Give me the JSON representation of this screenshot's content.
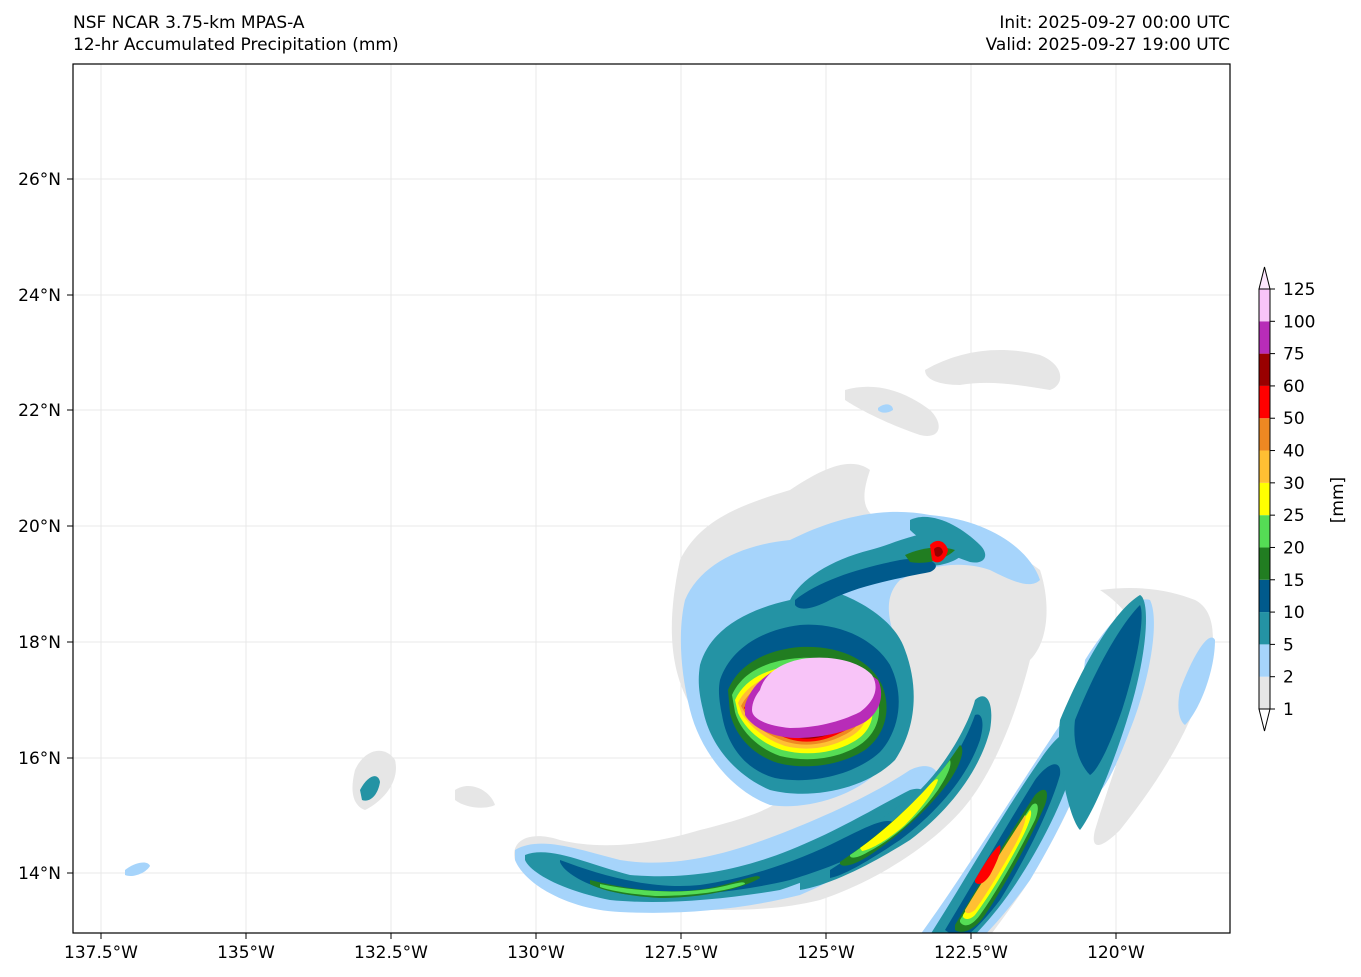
{
  "header": {
    "model": "NSF NCAR 3.75-km MPAS-A",
    "field": "12-hr Accumulated Precipitation (mm)",
    "init": "Init: 2025-09-27 00:00 UTC",
    "valid": "Valid: 2025-09-27 19:00 UTC"
  },
  "map": {
    "projection": "lat-lon",
    "lon_range": [
      -137.7,
      -117.7
    ],
    "lat_range": [
      13.0,
      28.0
    ],
    "grid": true,
    "lon_ticks": [
      "137.5°W",
      "135°W",
      "132.5°W",
      "130°W",
      "127.5°W",
      "125°W",
      "122.5°W",
      "120°W"
    ],
    "lat_ticks": [
      "14°N",
      "16°N",
      "18°N",
      "20°N",
      "22°N",
      "24°N",
      "26°N"
    ],
    "features": [
      {
        "name": "tropical-cyclone-core",
        "center_lon": -125.5,
        "center_lat": 17.0,
        "max_mm": 125
      },
      {
        "name": "northern-rainband",
        "description_lat": 19.5
      },
      {
        "name": "southern-spiral-rainband",
        "from_lon": -130.0,
        "to_lon": -121.5
      },
      {
        "name": "eastern-rainbands",
        "from_lon": -123.0,
        "to_lon": -118.0
      }
    ]
  },
  "colorbar": {
    "unit_label": "[mm]",
    "extend": "both",
    "levels": [
      "1",
      "2",
      "5",
      "10",
      "15",
      "20",
      "25",
      "30",
      "40",
      "50",
      "60",
      "75",
      "100",
      "125"
    ],
    "colors": [
      "#e6e6e6",
      "#a6d4fb",
      "#2493a4",
      "#005a8c",
      "#217d21",
      "#55dd55",
      "#ffff00",
      "#ffbf33",
      "#ee8822",
      "#ff0000",
      "#990000",
      "#b82cb8",
      "#f8c4f8"
    ],
    "under_color": "#ffffff",
    "over_color": "#fde6fd"
  }
}
